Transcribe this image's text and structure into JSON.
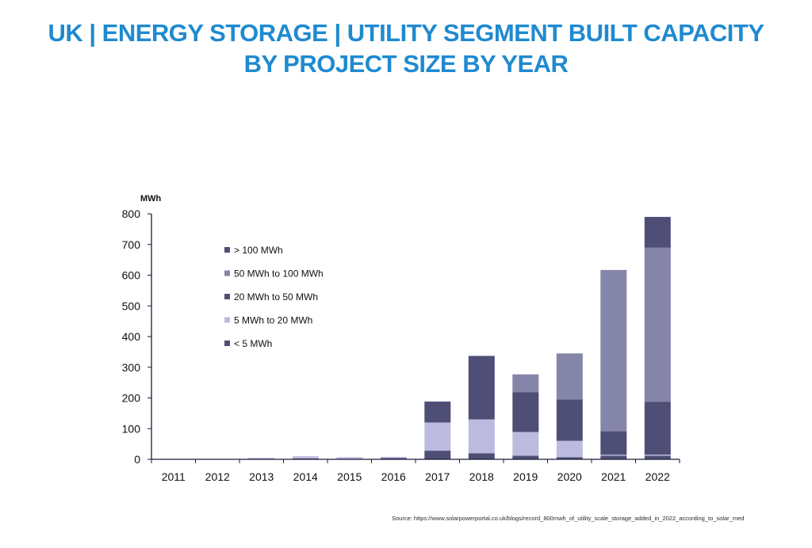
{
  "title": {
    "line1": "UK | ENERGY STORAGE | UTILITY SEGMENT BUILT CAPACITY",
    "line2": "BY PROJECT SIZE BY YEAR"
  },
  "source": "Source:  https://www.solarpowerportal.co.uk/blogs/record_800mwh_of_utility_scale_storage_added_in_2022_according_to_solar_med",
  "colors": {
    "title": "#1f8ad0",
    "axis": "#1a1a3a"
  },
  "chart_data": {
    "type": "bar",
    "stacked": true,
    "ylabel": "MWh",
    "ylim": [
      0,
      800
    ],
    "yticks": [
      0,
      100,
      200,
      300,
      400,
      500,
      600,
      700,
      800
    ],
    "grid": false,
    "legend_position": "top-left",
    "categories": [
      "2011",
      "2012",
      "2013",
      "2014",
      "2015",
      "2016",
      "2017",
      "2018",
      "2019",
      "2020",
      "2021",
      "2022"
    ],
    "series": [
      {
        "name": "< 5 MWh",
        "color": "#4f4e77",
        "values": [
          0,
          0,
          2,
          3,
          2,
          4,
          28,
          20,
          12,
          7,
          12,
          12
        ]
      },
      {
        "name": "5 MWh to 20 MWh",
        "color": "#bcbbdf",
        "values": [
          0,
          0,
          3,
          7,
          5,
          4,
          92,
          110,
          77,
          53,
          3,
          3
        ]
      },
      {
        "name": "20 MWh to 50 MWh",
        "color": "#4f4e77",
        "values": [
          0,
          0,
          0,
          0,
          0,
          0,
          68,
          207,
          130,
          135,
          77,
          172
        ]
      },
      {
        "name": "50 MWh to 100 MWh",
        "color": "#8584a9",
        "values": [
          0,
          0,
          0,
          0,
          0,
          0,
          0,
          0,
          58,
          150,
          525,
          503
        ]
      },
      {
        "name": "> 100 MWh",
        "color": "#4f4e77",
        "values": [
          0,
          0,
          0,
          0,
          0,
          0,
          0,
          0,
          0,
          0,
          0,
          100
        ]
      }
    ]
  }
}
